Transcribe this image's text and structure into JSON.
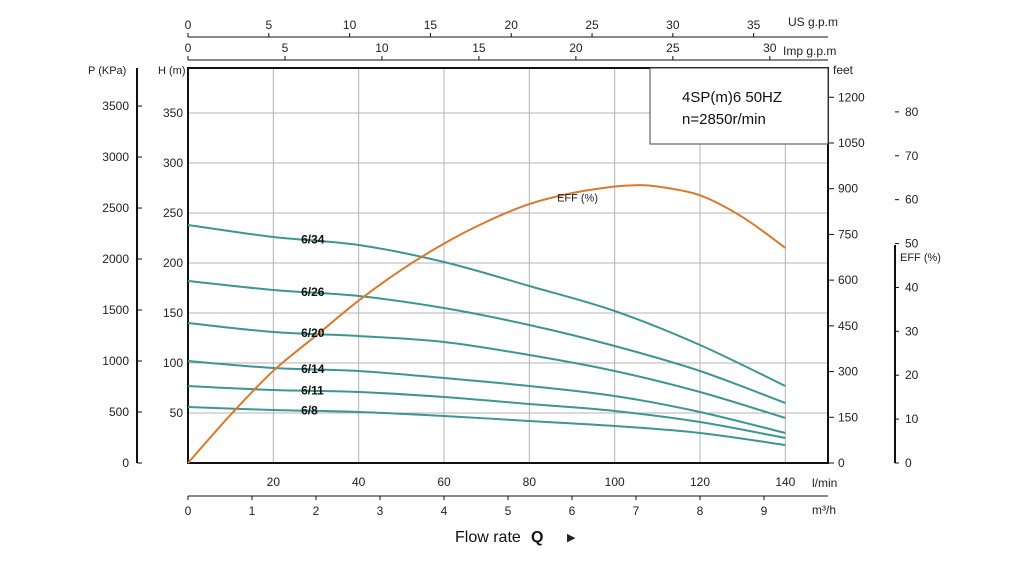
{
  "colors": {
    "pump_curve": "#3d9690",
    "efficiency_curve": "#d97a2e",
    "grid": "#b4b4b4",
    "axis": "#111111"
  },
  "chart_data": {
    "type": "line",
    "title_line1": "4SP(m)6  50HZ",
    "title_line2": "n=2850r/min",
    "xlabel_main": "Flow rate",
    "xlabel_symbol": "Q",
    "xlabel_arrow": "▶",
    "grid": true,
    "axes": {
      "flow_lmin": {
        "label": "l/min",
        "range": [
          0,
          150
        ],
        "ticks": [
          "20",
          "40",
          "60",
          "80",
          "100",
          "120",
          "140"
        ]
      },
      "flow_m3h": {
        "label": "m³/h",
        "range": [
          0,
          9
        ],
        "ticks": [
          "0",
          "1",
          "2",
          "3",
          "4",
          "5",
          "6",
          "7",
          "8",
          "9"
        ]
      },
      "flow_usgpm": {
        "label": "US g.p.m",
        "range": [
          0,
          39.6
        ],
        "ticks": [
          "0",
          "5",
          "10",
          "15",
          "20",
          "25",
          "30",
          "35"
        ]
      },
      "flow_impgpm": {
        "label": "Imp g.p.m",
        "range": [
          0,
          33
        ],
        "ticks": [
          "0",
          "5",
          "10",
          "15",
          "20",
          "25",
          "30"
        ]
      },
      "head_m": {
        "label": "H (m)",
        "range": [
          0,
          395
        ],
        "ticks": [
          "50",
          "100",
          "150",
          "200",
          "250",
          "300",
          "350"
        ]
      },
      "pressure_kpa": {
        "label": "P (KPa)",
        "range": [
          0,
          3873
        ],
        "ticks": [
          "0",
          "500",
          "1000",
          "1500",
          "2000",
          "2500",
          "3000",
          "3500"
        ]
      },
      "head_feet": {
        "label": "feet",
        "range": [
          0,
          1296
        ],
        "ticks": [
          "0",
          "150",
          "300",
          "450",
          "600",
          "750",
          "900",
          "1050",
          "1200"
        ]
      },
      "efficiency": {
        "label": "EFF (%)",
        "range": [
          0,
          90
        ],
        "ticks": [
          "0",
          "10",
          "20",
          "30",
          "40",
          "50",
          "60",
          "70",
          "80"
        ]
      }
    },
    "x_unit": "l/min",
    "y_unit": "H (m)",
    "series": [
      {
        "name": "6/34",
        "x": [
          0,
          20,
          40,
          60,
          80,
          100,
          120,
          140
        ],
        "y": [
          238,
          226,
          218,
          201,
          177,
          152,
          118,
          77
        ]
      },
      {
        "name": "6/26",
        "x": [
          0,
          20,
          40,
          60,
          80,
          100,
          120,
          140
        ],
        "y": [
          182,
          173,
          167,
          155,
          138,
          117,
          92,
          60
        ]
      },
      {
        "name": "6/20",
        "x": [
          0,
          20,
          40,
          60,
          80,
          100,
          120,
          140
        ],
        "y": [
          140,
          131,
          127,
          121,
          108,
          92,
          71,
          45
        ]
      },
      {
        "name": "6/14",
        "x": [
          0,
          20,
          40,
          60,
          80,
          100,
          120,
          140
        ],
        "y": [
          102,
          95,
          92,
          85,
          77,
          67,
          51,
          30
        ]
      },
      {
        "name": "6/11",
        "x": [
          0,
          20,
          40,
          60,
          80,
          100,
          120,
          140
        ],
        "y": [
          77,
          73,
          71,
          66,
          59,
          52,
          41,
          25
        ]
      },
      {
        "name": "6/8",
        "x": [
          0,
          20,
          40,
          60,
          80,
          100,
          120,
          140
        ],
        "y": [
          56,
          53,
          51,
          47,
          42,
          37,
          30,
          18
        ]
      }
    ],
    "efficiency_series": {
      "name": "EFF (%)",
      "x": [
        0,
        10,
        20,
        30,
        40,
        50,
        60,
        70,
        80,
        90,
        100,
        105,
        110,
        120,
        130,
        140
      ],
      "y": [
        0,
        11,
        21,
        29,
        37,
        44,
        50,
        55,
        59,
        61.5,
        63,
        63.3,
        63,
        61,
        56,
        49
      ]
    }
  }
}
